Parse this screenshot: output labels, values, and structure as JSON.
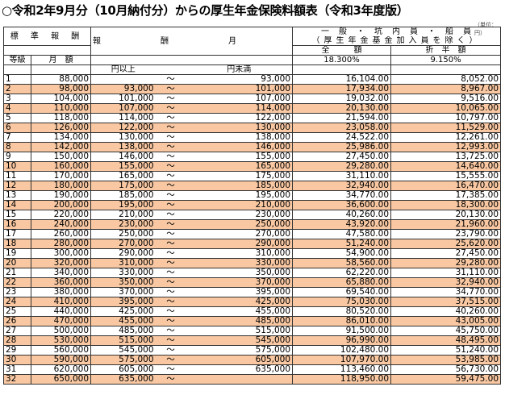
{
  "title": "○令和2年9月分（10月納付分）からの厚生年金保険料額表（令和3年度版）",
  "unit": "（単位：円）",
  "headers": {
    "standard": "標 準 報 酬",
    "remuneration": "報　　酬　　月　　額",
    "general_line1": "一　般　・　坑　内　員　・　船　員",
    "general_line2": "（厚生年金基金加入員を除く）",
    "full": "全　　　額",
    "half": "折　半　額",
    "grade": "等級",
    "monthly": "月　額",
    "above": "円以上",
    "below": "円未満",
    "rate_full": "18.300%",
    "rate_half": "9.150%"
  },
  "rows": [
    {
      "grade": "1",
      "monthly": "88,000",
      "min": "",
      "max": "93,000",
      "full": "16,104.00",
      "half": "8,052.00"
    },
    {
      "grade": "2",
      "monthly": "98,000",
      "min": "93,000",
      "max": "101,000",
      "full": "17,934.00",
      "half": "8,967.00"
    },
    {
      "grade": "3",
      "monthly": "104,000",
      "min": "101,000",
      "max": "107,000",
      "full": "19,032.00",
      "half": "9,516.00"
    },
    {
      "grade": "4",
      "monthly": "110,000",
      "min": "107,000",
      "max": "114,000",
      "full": "20,130.00",
      "half": "10,065.00"
    },
    {
      "grade": "5",
      "monthly": "118,000",
      "min": "114,000",
      "max": "122,000",
      "full": "21,594.00",
      "half": "10,797.00"
    },
    {
      "grade": "6",
      "monthly": "126,000",
      "min": "122,000",
      "max": "130,000",
      "full": "23,058.00",
      "half": "11,529.00"
    },
    {
      "grade": "7",
      "monthly": "134,000",
      "min": "130,000",
      "max": "138,000",
      "full": "24,522.00",
      "half": "12,261.00"
    },
    {
      "grade": "8",
      "monthly": "142,000",
      "min": "138,000",
      "max": "146,000",
      "full": "25,986.00",
      "half": "12,993.00"
    },
    {
      "grade": "9",
      "monthly": "150,000",
      "min": "146,000",
      "max": "155,000",
      "full": "27,450.00",
      "half": "13,725.00"
    },
    {
      "grade": "10",
      "monthly": "160,000",
      "min": "155,000",
      "max": "165,000",
      "full": "29,280.00",
      "half": "14,640.00"
    },
    {
      "grade": "11",
      "monthly": "170,000",
      "min": "165,000",
      "max": "175,000",
      "full": "31,110.00",
      "half": "15,555.00"
    },
    {
      "grade": "12",
      "monthly": "180,000",
      "min": "175,000",
      "max": "185,000",
      "full": "32,940.00",
      "half": "16,470.00"
    },
    {
      "grade": "13",
      "monthly": "190,000",
      "min": "185,000",
      "max": "195,000",
      "full": "34,770.00",
      "half": "17,385.00"
    },
    {
      "grade": "14",
      "monthly": "200,000",
      "min": "195,000",
      "max": "210,000",
      "full": "36,600.00",
      "half": "18,300.00"
    },
    {
      "grade": "15",
      "monthly": "220,000",
      "min": "210,000",
      "max": "230,000",
      "full": "40,260.00",
      "half": "20,130.00"
    },
    {
      "grade": "16",
      "monthly": "240,000",
      "min": "230,000",
      "max": "250,000",
      "full": "43,920.00",
      "half": "21,960.00"
    },
    {
      "grade": "17",
      "monthly": "260,000",
      "min": "250,000",
      "max": "270,000",
      "full": "47,580.00",
      "half": "23,790.00"
    },
    {
      "grade": "18",
      "monthly": "280,000",
      "min": "270,000",
      "max": "290,000",
      "full": "51,240.00",
      "half": "25,620.00"
    },
    {
      "grade": "19",
      "monthly": "300,000",
      "min": "290,000",
      "max": "310,000",
      "full": "54,900.00",
      "half": "27,450.00"
    },
    {
      "grade": "20",
      "monthly": "320,000",
      "min": "310,000",
      "max": "330,000",
      "full": "58,560.00",
      "half": "29,280.00"
    },
    {
      "grade": "21",
      "monthly": "340,000",
      "min": "330,000",
      "max": "350,000",
      "full": "62,220.00",
      "half": "31,110.00"
    },
    {
      "grade": "22",
      "monthly": "360,000",
      "min": "350,000",
      "max": "370,000",
      "full": "65,880.00",
      "half": "32,940.00"
    },
    {
      "grade": "23",
      "monthly": "380,000",
      "min": "370,000",
      "max": "395,000",
      "full": "69,540.00",
      "half": "34,770.00"
    },
    {
      "grade": "24",
      "monthly": "410,000",
      "min": "395,000",
      "max": "425,000",
      "full": "75,030.00",
      "half": "37,515.00"
    },
    {
      "grade": "25",
      "monthly": "440,000",
      "min": "425,000",
      "max": "455,000",
      "full": "80,520.00",
      "half": "40,260.00"
    },
    {
      "grade": "26",
      "monthly": "470,000",
      "min": "455,000",
      "max": "485,000",
      "full": "86,010.00",
      "half": "43,005.00"
    },
    {
      "grade": "27",
      "monthly": "500,000",
      "min": "485,000",
      "max": "515,000",
      "full": "91,500.00",
      "half": "45,750.00"
    },
    {
      "grade": "28",
      "monthly": "530,000",
      "min": "515,000",
      "max": "545,000",
      "full": "96,990.00",
      "half": "48,495.00"
    },
    {
      "grade": "29",
      "monthly": "560,000",
      "min": "545,000",
      "max": "575,000",
      "full": "102,480.00",
      "half": "51,240.00"
    },
    {
      "grade": "30",
      "monthly": "590,000",
      "min": "575,000",
      "max": "605,000",
      "full": "107,970.00",
      "half": "53,985.00"
    },
    {
      "grade": "31",
      "monthly": "620,000",
      "min": "605,000",
      "max": "635,000",
      "full": "113,460.00",
      "half": "56,730.00"
    },
    {
      "grade": "32",
      "monthly": "650,000",
      "min": "635,000",
      "max": "",
      "full": "118,950.00",
      "half": "59,475.00"
    }
  ]
}
